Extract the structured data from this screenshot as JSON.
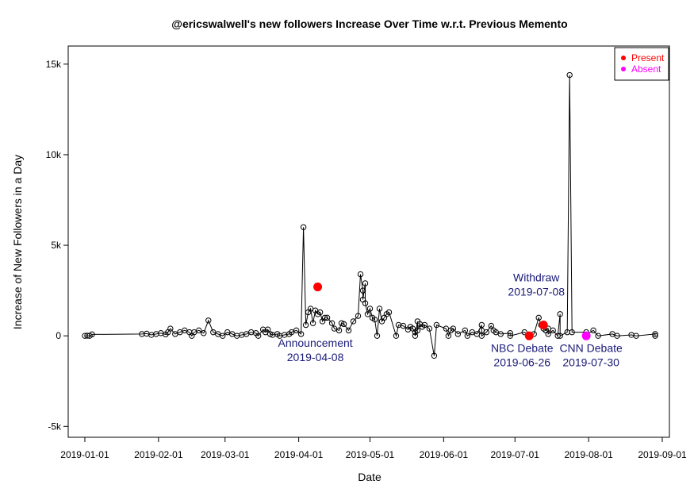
{
  "chart_data": {
    "type": "line",
    "title": "@ericswalwell's new followers Increase Over Time w.r.t. Previous Memento",
    "xlabel": "Date",
    "ylabel": "Increase of New Followers in a Day",
    "xlim": [
      "2018-12-25",
      "2019-09-04"
    ],
    "ylim": [
      -5600,
      16000
    ],
    "x_ticks": [
      {
        "date": "2019-01-01",
        "label": "2019-01-01"
      },
      {
        "date": "2019-02-01",
        "label": "2019-02-01"
      },
      {
        "date": "2019-03-01",
        "label": "2019-03-01"
      },
      {
        "date": "2019-04-01",
        "label": "2019-04-01"
      },
      {
        "date": "2019-05-01",
        "label": "2019-05-01"
      },
      {
        "date": "2019-06-01",
        "label": "2019-06-01"
      },
      {
        "date": "2019-07-01",
        "label": "2019-07-01"
      },
      {
        "date": "2019-08-01",
        "label": "2019-08-01"
      },
      {
        "date": "2019-09-01",
        "label": "2019-09-01"
      }
    ],
    "y_ticks": [
      {
        "value": -5000,
        "label": "-5k"
      },
      {
        "value": 0,
        "label": "0"
      },
      {
        "value": 5000,
        "label": "5k"
      },
      {
        "value": 10000,
        "label": "10k"
      },
      {
        "value": 15000,
        "label": "15k"
      }
    ],
    "series": [
      {
        "points": [
          [
            "2019-01-01",
            0
          ],
          [
            "2019-01-02",
            10
          ],
          [
            "2019-01-03",
            0
          ],
          [
            "2019-01-04",
            80
          ],
          [
            "2019-01-25",
            100
          ],
          [
            "2019-01-27",
            120
          ],
          [
            "2019-01-29",
            50
          ],
          [
            "2019-01-31",
            100
          ],
          [
            "2019-02-02",
            150
          ],
          [
            "2019-02-04",
            80
          ],
          [
            "2019-02-05",
            200
          ],
          [
            "2019-02-06",
            400
          ],
          [
            "2019-02-08",
            100
          ],
          [
            "2019-02-10",
            200
          ],
          [
            "2019-02-12",
            300
          ],
          [
            "2019-02-14",
            200
          ],
          [
            "2019-02-15",
            0
          ],
          [
            "2019-02-16",
            200
          ],
          [
            "2019-02-18",
            300
          ],
          [
            "2019-02-20",
            150
          ],
          [
            "2019-02-22",
            850
          ],
          [
            "2019-02-24",
            200
          ],
          [
            "2019-02-26",
            100
          ],
          [
            "2019-02-28",
            0
          ],
          [
            "2019-03-02",
            200
          ],
          [
            "2019-03-04",
            100
          ],
          [
            "2019-03-06",
            0
          ],
          [
            "2019-03-08",
            50
          ],
          [
            "2019-03-10",
            100
          ],
          [
            "2019-03-12",
            200
          ],
          [
            "2019-03-14",
            150
          ],
          [
            "2019-03-15",
            0
          ],
          [
            "2019-03-17",
            350
          ],
          [
            "2019-03-18",
            200
          ],
          [
            "2019-03-19",
            350
          ],
          [
            "2019-03-20",
            100
          ],
          [
            "2019-03-21",
            50
          ],
          [
            "2019-03-23",
            100
          ],
          [
            "2019-03-24",
            0
          ],
          [
            "2019-03-26",
            50
          ],
          [
            "2019-03-28",
            100
          ],
          [
            "2019-03-29",
            200
          ],
          [
            "2019-03-31",
            300
          ],
          [
            "2019-04-02",
            100
          ],
          [
            "2019-04-03",
            6000
          ],
          [
            "2019-04-04",
            600
          ],
          [
            "2019-04-05",
            1300
          ],
          [
            "2019-04-06",
            1500
          ],
          [
            "2019-04-07",
            700
          ],
          [
            "2019-04-08",
            1400
          ],
          [
            "2019-04-09",
            1200
          ],
          [
            "2019-04-10",
            1300
          ],
          [
            "2019-04-11",
            800
          ],
          [
            "2019-04-12",
            1000
          ],
          [
            "2019-04-13",
            1000
          ],
          [
            "2019-04-15",
            700
          ],
          [
            "2019-04-16",
            400
          ],
          [
            "2019-04-18",
            300
          ],
          [
            "2019-04-19",
            700
          ],
          [
            "2019-04-20",
            650
          ],
          [
            "2019-04-22",
            300
          ],
          [
            "2019-04-24",
            800
          ],
          [
            "2019-04-26",
            1100
          ],
          [
            "2019-04-27",
            3400
          ],
          [
            "2019-04-28",
            2500
          ],
          [
            "2019-04-28",
            2000
          ],
          [
            "2019-04-29",
            2900
          ],
          [
            "2019-04-29",
            1800
          ],
          [
            "2019-04-30",
            1200
          ],
          [
            "2019-05-01",
            1500
          ],
          [
            "2019-05-02",
            1000
          ],
          [
            "2019-05-03",
            900
          ],
          [
            "2019-05-04",
            0
          ],
          [
            "2019-05-05",
            1500
          ],
          [
            "2019-05-06",
            800
          ],
          [
            "2019-05-07",
            1000
          ],
          [
            "2019-05-08",
            1200
          ],
          [
            "2019-05-09",
            1300
          ],
          [
            "2019-05-12",
            0
          ],
          [
            "2019-05-13",
            600
          ],
          [
            "2019-05-15",
            550
          ],
          [
            "2019-05-17",
            350
          ],
          [
            "2019-05-18",
            500
          ],
          [
            "2019-05-19",
            400
          ],
          [
            "2019-05-20",
            200
          ],
          [
            "2019-05-20",
            0
          ],
          [
            "2019-05-21",
            800
          ],
          [
            "2019-05-21",
            300
          ],
          [
            "2019-05-22",
            650
          ],
          [
            "2019-05-23",
            500
          ],
          [
            "2019-05-24",
            600
          ],
          [
            "2019-05-26",
            400
          ],
          [
            "2019-05-28",
            -1100
          ],
          [
            "2019-05-29",
            600
          ],
          [
            "2019-06-02",
            400
          ],
          [
            "2019-06-03",
            0
          ],
          [
            "2019-06-04",
            300
          ],
          [
            "2019-06-05",
            400
          ],
          [
            "2019-06-07",
            100
          ],
          [
            "2019-06-10",
            300
          ],
          [
            "2019-06-11",
            0
          ],
          [
            "2019-06-13",
            200
          ],
          [
            "2019-06-15",
            100
          ],
          [
            "2019-06-17",
            600
          ],
          [
            "2019-06-17",
            300
          ],
          [
            "2019-06-17",
            0
          ],
          [
            "2019-06-19",
            200
          ],
          [
            "2019-06-21",
            550
          ],
          [
            "2019-06-22",
            300
          ],
          [
            "2019-06-23",
            200
          ],
          [
            "2019-06-25",
            100
          ],
          [
            "2019-06-29",
            150
          ],
          [
            "2019-06-29",
            0
          ],
          [
            "2019-07-05",
            200
          ],
          [
            "2019-07-07",
            0
          ],
          [
            "2019-07-09",
            100
          ],
          [
            "2019-07-11",
            1000
          ],
          [
            "2019-07-12",
            600
          ],
          [
            "2019-07-13",
            400
          ],
          [
            "2019-07-14",
            300
          ],
          [
            "2019-07-15",
            400
          ],
          [
            "2019-07-15",
            100
          ],
          [
            "2019-07-17",
            300
          ],
          [
            "2019-07-19",
            0
          ],
          [
            "2019-07-20",
            1200
          ],
          [
            "2019-07-20",
            0
          ],
          [
            "2019-07-23",
            200
          ],
          [
            "2019-07-24",
            14400
          ],
          [
            "2019-07-25",
            200
          ],
          [
            "2019-07-31",
            200
          ],
          [
            "2019-07-31",
            50
          ],
          [
            "2019-08-03",
            300
          ],
          [
            "2019-08-05",
            0
          ],
          [
            "2019-08-11",
            100
          ],
          [
            "2019-08-13",
            0
          ],
          [
            "2019-08-19",
            50
          ],
          [
            "2019-08-21",
            0
          ],
          [
            "2019-08-29",
            100
          ],
          [
            "2019-08-29",
            0
          ]
        ]
      }
    ],
    "events": [
      {
        "date": "2019-04-09",
        "value": 2700,
        "status": "Present"
      },
      {
        "date": "2019-07-07",
        "value": 0,
        "status": "Present"
      },
      {
        "date": "2019-07-13",
        "value": 600,
        "status": "Present"
      },
      {
        "date": "2019-07-31",
        "value": 0,
        "status": "Absent"
      }
    ],
    "annotations": [
      {
        "lines": [
          "Announcement",
          "2019-04-08"
        ],
        "date": "2019-04-08",
        "value": -600,
        "anchor": "middle"
      },
      {
        "lines": [
          "NBC Debate",
          "2019-06-26"
        ],
        "date": "2019-07-04",
        "value": -900,
        "anchor": "middle"
      },
      {
        "lines": [
          "Withdraw",
          "2019-07-08"
        ],
        "date": "2019-07-10",
        "value": 3000,
        "anchor": "middle"
      },
      {
        "lines": [
          "CNN Debate",
          "2019-07-30"
        ],
        "date": "2019-08-02",
        "value": -900,
        "anchor": "middle"
      }
    ],
    "legend": {
      "position": "top-right",
      "entries": [
        {
          "label": "Present",
          "color": "#ff0000"
        },
        {
          "label": "Absent",
          "color": "#ff00ff"
        }
      ]
    },
    "colors": {
      "line": "#000000",
      "present": "#ff0000",
      "absent": "#ff00ff",
      "annotation": "#1a1a7a"
    }
  }
}
